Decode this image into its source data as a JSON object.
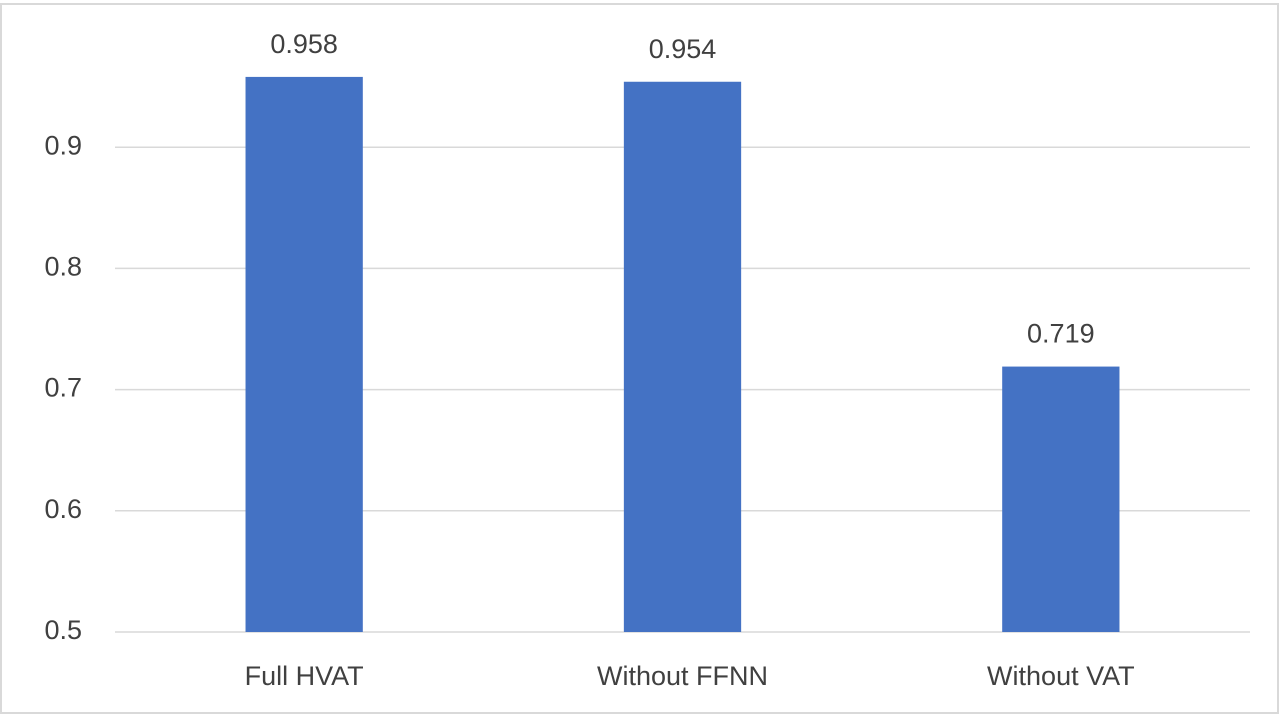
{
  "chart_data": {
    "type": "bar",
    "categories": [
      "Full HVAT",
      "Without FFNN",
      "Without VAT"
    ],
    "values": [
      0.958,
      0.954,
      0.719
    ],
    "color": "#4472c4",
    "ylim": [
      0.5,
      1.0
    ],
    "yticks": [
      0.5,
      0.6,
      0.7,
      0.8,
      0.9
    ],
    "grid": true
  }
}
